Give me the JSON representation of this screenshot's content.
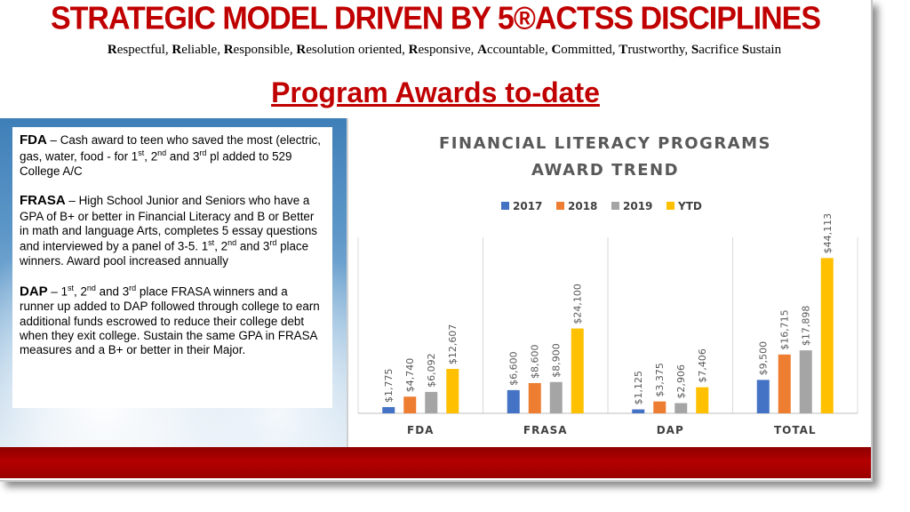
{
  "header": {
    "title": "STRATEGIC MODEL DRIVEN BY 5®ACTSS DISCIPLINES",
    "disciplines": [
      {
        "initial": "R",
        "rest": "espectful"
      },
      {
        "initial": "R",
        "rest": "eliable"
      },
      {
        "initial": "R",
        "rest": "esponsible"
      },
      {
        "initial": "R",
        "rest": "esolution oriented"
      },
      {
        "initial": "R",
        "rest": "esponsive"
      },
      {
        "initial": "A",
        "rest": "ccountable"
      },
      {
        "initial": "C",
        "rest": "ommitted"
      },
      {
        "initial": "T",
        "rest": "rustworthy"
      },
      {
        "initial": "S",
        "rest": "acrifice"
      },
      {
        "initial": "S",
        "rest": "ustain"
      }
    ],
    "section_title": "Program Awards to-date"
  },
  "programs": [
    {
      "name": "FDA",
      "dash": " – ",
      "text_parts": [
        "Cash award to teen who saved the most (electric, gas, water, food - for 1",
        "st",
        ", 2",
        "nd",
        " and 3",
        "rd",
        " pl added to 529 College A/C"
      ]
    },
    {
      "name": "FRASA",
      "dash": " –  ",
      "text_parts": [
        "High School Junior and Seniors who have a GPA of B+ or better in Financial Literacy and B or Better in math and language Arts, completes 5 essay questions and interviewed by a panel of 3-5. 1",
        "st",
        ", 2",
        "nd",
        " and 3",
        "rd",
        " place winners.  Award pool increased annually"
      ]
    },
    {
      "name": "DAP",
      "dash": " –  ",
      "text_parts": [
        "1",
        "st",
        ", 2",
        "nd",
        " and 3",
        "rd",
        " place FRASA winners and a runner up added to DAP followed through college to earn additional funds escrowed to reduce their college debt when they exit college.  Sustain the same GPA in FRASA measures and a B+ or better in their Major."
      ]
    }
  ],
  "chart_data": {
    "type": "bar",
    "title": [
      "FINANCIAL LITERACY PROGRAMS",
      "AWARD TREND"
    ],
    "categories": [
      "FDA",
      "FRASA",
      "DAP",
      "TOTAL"
    ],
    "series": [
      {
        "name": "2017",
        "color": "#4472c4",
        "values": [
          1775,
          6600,
          1125,
          9500
        ],
        "labels": [
          "$1,775",
          "$6,600",
          "$1,125",
          "$9,500"
        ]
      },
      {
        "name": "2018",
        "color": "#ed7d31",
        "values": [
          4740,
          8600,
          3375,
          16715
        ],
        "labels": [
          "$4,740",
          "$8,600",
          "$3,375",
          "$16,715"
        ]
      },
      {
        "name": "2019",
        "color": "#a5a5a5",
        "values": [
          6092,
          8900,
          2906,
          17898
        ],
        "labels": [
          "$6,092",
          "$8,900",
          "$2,906",
          "$17,898"
        ]
      },
      {
        "name": "YTD",
        "color": "#ffc000",
        "values": [
          12607,
          24100,
          7406,
          44113
        ],
        "labels": [
          "$12,607",
          "$24,100",
          "$7,406",
          "$44,113"
        ]
      }
    ],
    "legend_position": "top",
    "ylim": [
      0,
      50000
    ],
    "grid": "vertical category separators"
  },
  "colors": {
    "title_red": "#c00000",
    "band_red": "#b40000"
  }
}
